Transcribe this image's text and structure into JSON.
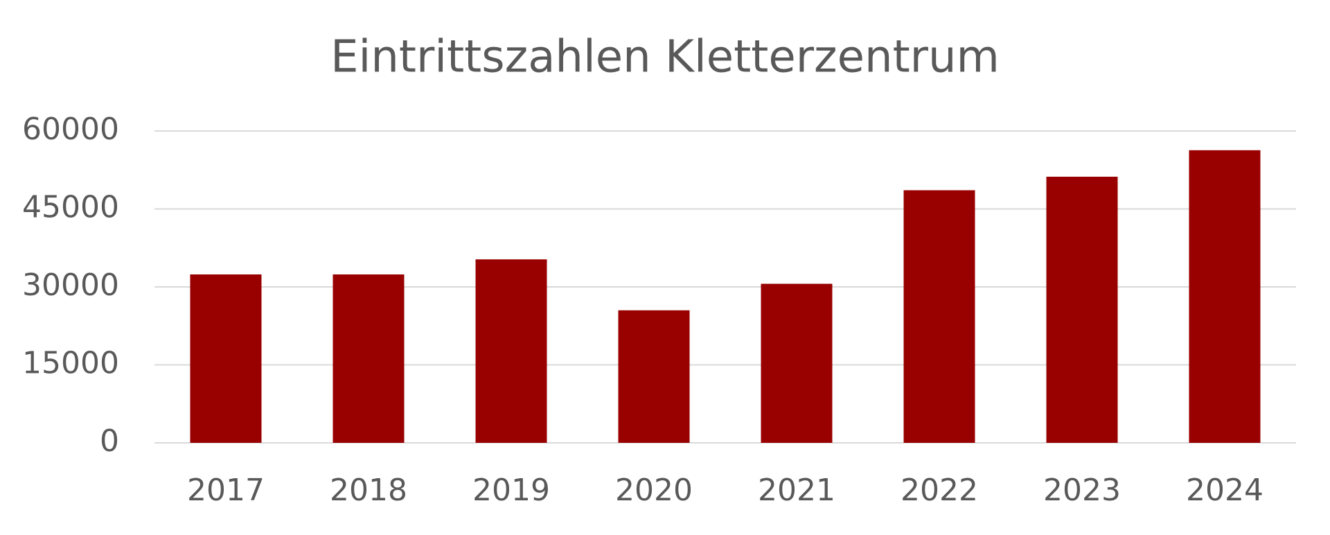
{
  "chart_data": {
    "type": "bar",
    "title": "Eintrittszahlen Kletterzentrum",
    "categories": [
      "2017",
      "2018",
      "2019",
      "2020",
      "2021",
      "2022",
      "2023",
      "2024"
    ],
    "values": [
      32400,
      32400,
      35300,
      25500,
      30600,
      48600,
      51200,
      56300
    ],
    "color": "#990000",
    "ylim": [
      0,
      60000
    ],
    "yticks": [
      0,
      15000,
      30000,
      45000,
      60000
    ],
    "grid": true
  }
}
